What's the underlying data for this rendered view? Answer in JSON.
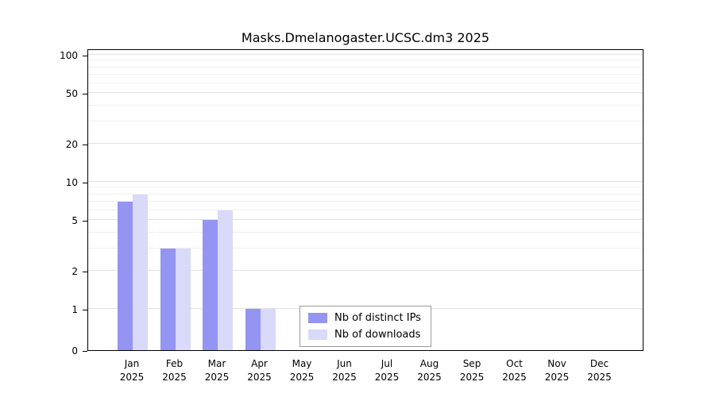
{
  "chart_data": {
    "type": "bar",
    "title": "Masks.Dmelanogaster.UCSC.dm3 2025",
    "categories": [
      "Jan",
      "Feb",
      "Mar",
      "Apr",
      "May",
      "Jun",
      "Jul",
      "Aug",
      "Sep",
      "Oct",
      "Nov",
      "Dec"
    ],
    "category_year": "2025",
    "series": [
      {
        "name": "Nb of distinct IPs",
        "color": "#9494f2",
        "values": [
          7,
          3,
          5,
          1,
          0,
          0,
          0,
          0,
          0,
          0,
          0,
          0
        ]
      },
      {
        "name": "Nb of downloads",
        "color": "#d9d9f9",
        "values": [
          8,
          3,
          6,
          1,
          0,
          0,
          0,
          0,
          0,
          0,
          0,
          0
        ]
      }
    ],
    "yscale": "log",
    "yticks": [
      0,
      1,
      2,
      5,
      10,
      20,
      50,
      100
    ],
    "minor_gridlines": [
      3,
      4,
      6,
      7,
      8,
      9,
      30,
      40,
      60,
      70,
      80,
      90
    ],
    "ylim": [
      0,
      100
    ],
    "grid": true,
    "legend": {
      "position": "inside-bottom-center",
      "entries": [
        "Nb of distinct IPs",
        "Nb of downloads"
      ]
    }
  }
}
